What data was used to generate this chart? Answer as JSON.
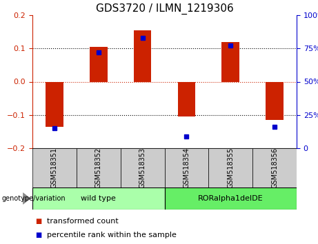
{
  "title": "GDS3720 / ILMN_1219306",
  "samples": [
    "GSM518351",
    "GSM518352",
    "GSM518353",
    "GSM518354",
    "GSM518355",
    "GSM518356"
  ],
  "bar_values": [
    -0.135,
    0.105,
    0.155,
    -0.105,
    0.12,
    -0.115
  ],
  "percentile_values": [
    15,
    72,
    83,
    9,
    77,
    16
  ],
  "ylim": [
    -0.2,
    0.2
  ],
  "yticks_left": [
    -0.2,
    -0.1,
    0,
    0.1,
    0.2
  ],
  "yticks_right": [
    0,
    25,
    50,
    75,
    100
  ],
  "bar_color": "#cc2200",
  "dot_color": "#0000cc",
  "background_color": "#ffffff",
  "group_color_1": "#aaffaa",
  "group_color_2": "#66ee66",
  "sample_box_color": "#cccccc",
  "legend_items": [
    {
      "label": "transformed count",
      "color": "#cc2200"
    },
    {
      "label": "percentile rank within the sample",
      "color": "#0000cc"
    }
  ],
  "genotype_label": "genotype/variation",
  "title_fontsize": 11,
  "tick_fontsize": 8,
  "label_fontsize": 8,
  "sample_fontsize": 7,
  "group_fontsize": 8,
  "legend_fontsize": 8
}
